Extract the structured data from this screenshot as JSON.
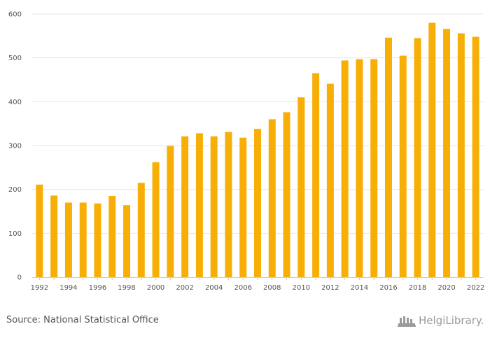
{
  "chart_data": {
    "type": "bar",
    "categories": [
      "1992",
      "1993",
      "1994",
      "1995",
      "1996",
      "1997",
      "1998",
      "1999",
      "2000",
      "2001",
      "2002",
      "2003",
      "2004",
      "2005",
      "2006",
      "2007",
      "2008",
      "2009",
      "2010",
      "2011",
      "2012",
      "2013",
      "2014",
      "2015",
      "2016",
      "2017",
      "2018",
      "2019",
      "2020",
      "2021",
      "2022"
    ],
    "x_tick_labels": [
      "1992",
      "1994",
      "1996",
      "1998",
      "2000",
      "2002",
      "2004",
      "2006",
      "2008",
      "2010",
      "2012",
      "2014",
      "2016",
      "2018",
      "2020",
      "2022"
    ],
    "values": [
      211,
      186,
      170,
      170,
      168,
      185,
      164,
      215,
      262,
      299,
      321,
      328,
      321,
      331,
      318,
      338,
      360,
      376,
      410,
      465,
      441,
      494,
      497,
      497,
      546,
      505,
      545,
      580,
      566,
      556,
      548
    ],
    "y_ticks": [
      0,
      100,
      200,
      300,
      400,
      500,
      600
    ],
    "ylim": [
      0,
      600
    ],
    "title": "",
    "xlabel": "",
    "ylabel": "",
    "grid": true,
    "bar_color": "#F7AF08"
  },
  "footer": {
    "source": "Source: National Statistical Office",
    "brand": "HelgiLibrary."
  },
  "colors": {
    "bar": "#F7AF08",
    "grid": "#e6e6e6",
    "text": "#555555",
    "brand": "#9a9a9a"
  }
}
